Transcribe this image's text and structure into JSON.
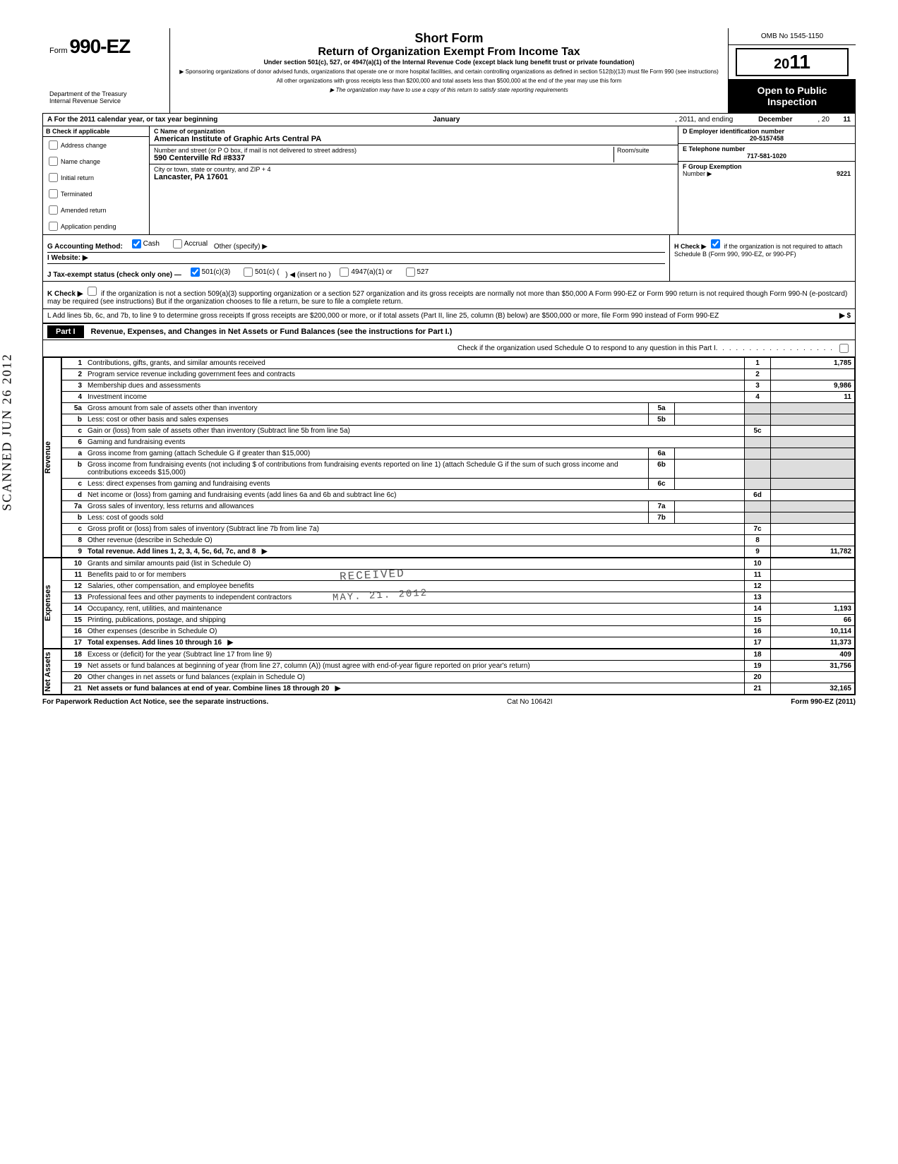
{
  "form": {
    "form_word": "Form",
    "number": "990-EZ",
    "dept1": "Department of the Treasury",
    "dept2": "Internal Revenue Service",
    "short_form": "Short Form",
    "title": "Return of Organization Exempt From Income Tax",
    "under": "Under section 501(c), 527, or 4947(a)(1) of the Internal Revenue Code (except black lung benefit trust or private foundation)",
    "sponsor1": "▶ Sponsoring organizations of donor advised funds, organizations that operate one or more hospital facilities, and certain controlling organizations as defined in section 512(b)(13) must file Form 990 (see instructions)",
    "sponsor2": "All other organizations with gross receipts less than $200,000 and total assets less than $500,000 at the end of the year may use this form",
    "sponsor3": "▶ The organization may have to use a copy of this return to satisfy state reporting requirements",
    "omb": "OMB No 1545-1150",
    "year_prefix": "20",
    "year_suffix": "11",
    "open": "Open to Public Inspection"
  },
  "sectionA": {
    "a_label": "A  For the 2011 calendar year, or tax year beginning",
    "begin_month": "January",
    "mid": ", 2011, and ending",
    "end_month": "December",
    "end_yr_prefix": ", 20",
    "end_yr": "11",
    "b_label": "B  Check if applicable",
    "b_items": [
      "Address change",
      "Name change",
      "Initial return",
      "Terminated",
      "Amended return",
      "Application pending"
    ],
    "c_label": "C  Name of organization",
    "org_name": "American Institute of Graphic Arts Central PA",
    "addr_label": "Number and street (or P O  box, if mail is not delivered to street address)",
    "room_label": "Room/suite",
    "addr": "590 Centerville Rd #8337",
    "city_label": "City or town, state or country, and ZIP + 4",
    "city": "Lancaster, PA  17601",
    "d_label": "D Employer identification number",
    "ein": "20-5157458",
    "e_label": "E  Telephone number",
    "phone": "717-581-1020",
    "f_label": "F  Group Exemption",
    "f_number": "Number ▶",
    "group_num": "9221",
    "g_label": "G  Accounting Method:",
    "g_cash": "Cash",
    "g_accrual": "Accrual",
    "g_other": "Other (specify) ▶",
    "h_label": "H  Check ▶",
    "h_text": "if the organization is not required to attach Schedule B (Form 990, 990-EZ, or 990-PF)",
    "i_label": "I  Website: ▶",
    "j_label": "J  Tax-exempt status (check only one) —",
    "j_501c3": "501(c)(3)",
    "j_501c": "501(c) (",
    "j_insert": ")  ◀ (insert no )",
    "j_4947": "4947(a)(1) or",
    "j_527": "527",
    "k_label": "K  Check ▶",
    "k_text": "if the organization is not a section 509(a)(3) supporting organization or a section 527 organization and its gross receipts are normally not more than $50,000  A Form 990-EZ or Form 990 return is not required though Form 990-N (e-postcard) may be required (see instructions)  But if the organization chooses to file a return, be sure to file a complete return.",
    "l_text": "L  Add lines 5b, 6c, and 7b, to line 9 to determine gross receipts  If gross receipts are $200,000 or more, or if total assets (Part II, line 25, column (B) below) are $500,000 or more, file Form 990 instead of Form 990-EZ",
    "l_arrow": "▶  $"
  },
  "part1": {
    "label": "Part I",
    "title": "Revenue, Expenses, and Changes in Net Assets or Fund Balances (see the instructions for Part I.)",
    "sched_o": "Check if the organization used Schedule O to respond to any question in this Part I"
  },
  "sections": {
    "revenue": "Revenue",
    "expenses": "Expenses",
    "netassets": "Net Assets"
  },
  "lines": [
    {
      "n": "1",
      "desc": "Contributions, gifts, grants, and similar amounts received",
      "box": "1",
      "amt": "1,785"
    },
    {
      "n": "2",
      "desc": "Program service revenue including government fees and contracts",
      "box": "2",
      "amt": ""
    },
    {
      "n": "3",
      "desc": "Membership dues and assessments",
      "box": "3",
      "amt": "9,986"
    },
    {
      "n": "4",
      "desc": "Investment income",
      "box": "4",
      "amt": "11"
    },
    {
      "n": "5a",
      "desc": "Gross amount from sale of assets other than inventory",
      "mid": "5a"
    },
    {
      "n": "b",
      "desc": "Less: cost or other basis and sales expenses",
      "mid": "5b"
    },
    {
      "n": "c",
      "desc": "Gain or (loss) from sale of assets other than inventory (Subtract line 5b from line 5a)",
      "box": "5c",
      "amt": ""
    },
    {
      "n": "6",
      "desc": "Gaming and fundraising events"
    },
    {
      "n": "a",
      "desc": "Gross income from gaming (attach Schedule G if greater than $15,000)",
      "mid": "6a"
    },
    {
      "n": "b",
      "desc": "Gross income from fundraising events (not including  $                    of contributions from fundraising events reported on line 1) (attach Schedule G if the sum of such gross income and contributions exceeds $15,000)",
      "mid": "6b"
    },
    {
      "n": "c",
      "desc": "Less: direct expenses from gaming and fundraising events",
      "mid": "6c"
    },
    {
      "n": "d",
      "desc": "Net income or (loss) from gaming and fundraising events (add lines 6a and 6b and subtract line 6c)",
      "box": "6d",
      "amt": ""
    },
    {
      "n": "7a",
      "desc": "Gross sales of inventory, less returns and allowances",
      "mid": "7a"
    },
    {
      "n": "b",
      "desc": "Less: cost of goods sold",
      "mid": "7b"
    },
    {
      "n": "c",
      "desc": "Gross profit or (loss) from sales of inventory (Subtract line 7b from line 7a)",
      "box": "7c",
      "amt": ""
    },
    {
      "n": "8",
      "desc": "Other revenue (describe in Schedule O)",
      "box": "8",
      "amt": ""
    },
    {
      "n": "9",
      "desc": "Total revenue. Add lines 1, 2, 3, 4, 5c, 6d, 7c, and 8",
      "box": "9",
      "amt": "11,782",
      "arrow": true,
      "bold": true
    }
  ],
  "exp_lines": [
    {
      "n": "10",
      "desc": "Grants and similar amounts paid (list in Schedule O)",
      "box": "10",
      "amt": ""
    },
    {
      "n": "11",
      "desc": "Benefits paid to or for members",
      "box": "11",
      "amt": ""
    },
    {
      "n": "12",
      "desc": "Salaries, other compensation, and employee benefits",
      "box": "12",
      "amt": ""
    },
    {
      "n": "13",
      "desc": "Professional fees and other payments to independent contractors",
      "box": "13",
      "amt": ""
    },
    {
      "n": "14",
      "desc": "Occupancy, rent, utilities, and maintenance",
      "box": "14",
      "amt": "1,193"
    },
    {
      "n": "15",
      "desc": "Printing, publications, postage, and shipping",
      "box": "15",
      "amt": "66"
    },
    {
      "n": "16",
      "desc": "Other expenses (describe in Schedule O)",
      "box": "16",
      "amt": "10,114"
    },
    {
      "n": "17",
      "desc": "Total expenses. Add lines 10 through 16",
      "box": "17",
      "amt": "11,373",
      "arrow": true,
      "bold": true
    }
  ],
  "na_lines": [
    {
      "n": "18",
      "desc": "Excess or (deficit) for the year (Subtract line 17 from line 9)",
      "box": "18",
      "amt": "409"
    },
    {
      "n": "19",
      "desc": "Net assets or fund balances at beginning of year (from line 27, column (A)) (must agree with end-of-year figure reported on prior year's return)",
      "box": "19",
      "amt": "31,756"
    },
    {
      "n": "20",
      "desc": "Other changes in net assets or fund balances (explain in Schedule O)",
      "box": "20",
      "amt": ""
    },
    {
      "n": "21",
      "desc": "Net assets or fund balances at end of year. Combine lines 18 through 20",
      "box": "21",
      "amt": "32,165",
      "arrow": true,
      "bold": true
    }
  ],
  "footer": {
    "left": "For Paperwork Reduction Act Notice, see the separate instructions.",
    "cat": "Cat No 10642I",
    "right": "Form 990-EZ (2011)"
  },
  "stamps": {
    "received": "RECEIVED",
    "date": "MAY. 21. 2012",
    "scanned": "SCANNED JUN 26 2012"
  }
}
